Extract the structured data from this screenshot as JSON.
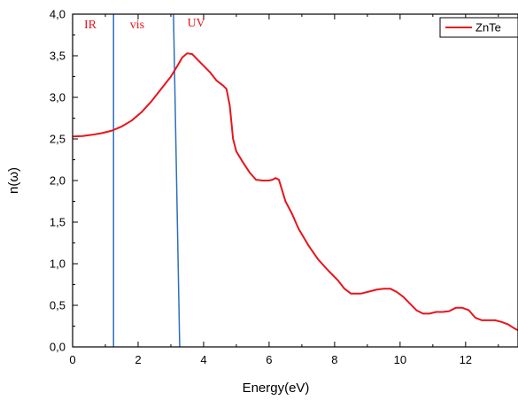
{
  "chart_data": {
    "type": "line",
    "title": "",
    "xlabel": "Energy(eV)",
    "ylabel": "n(ω)",
    "xlim": [
      0,
      13.6
    ],
    "ylim": [
      0,
      4.0
    ],
    "x_ticks": [
      0,
      2,
      4,
      6,
      8,
      10,
      12
    ],
    "y_ticks": [
      0,
      0.5,
      1.0,
      1.5,
      2.0,
      2.5,
      3.0,
      3.5,
      4.0
    ],
    "x_tick_labels": [
      "0",
      "2",
      "4",
      "6",
      "8",
      "10",
      "12"
    ],
    "y_tick_labels": [
      "0,0",
      "0,5",
      "1,0",
      "1,5",
      "2,0",
      "2,5",
      "3,0",
      "3,5",
      "4,0"
    ],
    "grid": false,
    "legend_position": "top-right",
    "series": [
      {
        "name": "ZnTe",
        "color": "#e8141c",
        "points": [
          [
            0.0,
            2.53
          ],
          [
            0.3,
            2.535
          ],
          [
            0.6,
            2.55
          ],
          [
            0.9,
            2.57
          ],
          [
            1.2,
            2.6
          ],
          [
            1.5,
            2.65
          ],
          [
            1.8,
            2.72
          ],
          [
            2.1,
            2.82
          ],
          [
            2.4,
            2.95
          ],
          [
            2.7,
            3.1
          ],
          [
            3.0,
            3.25
          ],
          [
            3.2,
            3.38
          ],
          [
            3.35,
            3.48
          ],
          [
            3.5,
            3.53
          ],
          [
            3.65,
            3.52
          ],
          [
            3.8,
            3.46
          ],
          [
            4.0,
            3.38
          ],
          [
            4.2,
            3.3
          ],
          [
            4.4,
            3.2
          ],
          [
            4.6,
            3.14
          ],
          [
            4.7,
            3.1
          ],
          [
            4.8,
            2.9
          ],
          [
            4.9,
            2.5
          ],
          [
            5.0,
            2.35
          ],
          [
            5.2,
            2.22
          ],
          [
            5.4,
            2.1
          ],
          [
            5.6,
            2.01
          ],
          [
            5.8,
            2.0
          ],
          [
            6.0,
            2.0
          ],
          [
            6.1,
            2.01
          ],
          [
            6.2,
            2.03
          ],
          [
            6.3,
            2.01
          ],
          [
            6.4,
            1.88
          ],
          [
            6.5,
            1.75
          ],
          [
            6.7,
            1.6
          ],
          [
            6.9,
            1.42
          ],
          [
            7.2,
            1.22
          ],
          [
            7.5,
            1.05
          ],
          [
            7.8,
            0.92
          ],
          [
            8.1,
            0.8
          ],
          [
            8.3,
            0.7
          ],
          [
            8.5,
            0.64
          ],
          [
            8.8,
            0.64
          ],
          [
            9.1,
            0.67
          ],
          [
            9.3,
            0.69
          ],
          [
            9.5,
            0.7
          ],
          [
            9.7,
            0.7
          ],
          [
            9.9,
            0.66
          ],
          [
            10.1,
            0.6
          ],
          [
            10.3,
            0.52
          ],
          [
            10.5,
            0.44
          ],
          [
            10.7,
            0.4
          ],
          [
            10.9,
            0.4
          ],
          [
            11.1,
            0.42
          ],
          [
            11.3,
            0.42
          ],
          [
            11.5,
            0.43
          ],
          [
            11.7,
            0.47
          ],
          [
            11.9,
            0.47
          ],
          [
            12.1,
            0.44
          ],
          [
            12.3,
            0.35
          ],
          [
            12.5,
            0.32
          ],
          [
            12.7,
            0.32
          ],
          [
            12.9,
            0.32
          ],
          [
            13.1,
            0.3
          ],
          [
            13.3,
            0.27
          ],
          [
            13.5,
            0.22
          ],
          [
            13.6,
            0.2
          ]
        ]
      }
    ],
    "boundaries": [
      {
        "color": "#2e6fbd",
        "points": [
          [
            1.25,
            0.0
          ],
          [
            1.25,
            4.0
          ]
        ]
      },
      {
        "color": "#2e6fbd",
        "points": [
          [
            3.27,
            0.0
          ],
          [
            3.08,
            4.0
          ]
        ]
      }
    ],
    "annotations": [
      {
        "text": "IR",
        "x": 0.35,
        "y": 3.83,
        "color": "#e8141c"
      },
      {
        "text": "vis",
        "x": 1.75,
        "y": 3.83,
        "color": "#e8141c"
      },
      {
        "text": "UV",
        "x": 3.5,
        "y": 3.85,
        "color": "#e8141c"
      }
    ]
  }
}
